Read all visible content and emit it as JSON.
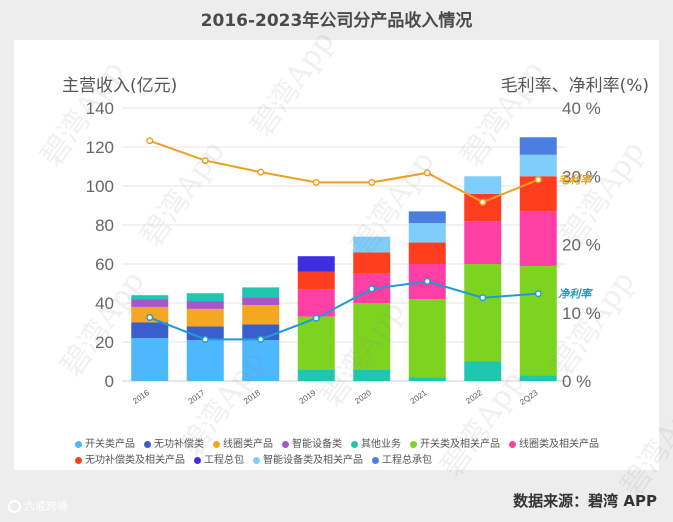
{
  "title": "2016-2023年公司分产品收入情况",
  "source": "数据来源：碧湾 APP",
  "footer_logo": "六戒跨境",
  "watermark": "碧湾App",
  "chart_data": {
    "type": "bar",
    "stacked": true,
    "title": "2016-2023年公司分产品收入情况",
    "ylabel": "主营收入(亿元)",
    "y2label": "毛利率、净利率(%)",
    "ylim": [
      0,
      140
    ],
    "y2lim": [
      0,
      40
    ],
    "yticks": [
      0,
      20,
      40,
      60,
      80,
      100,
      120,
      140
    ],
    "y2ticks": [
      "0 %",
      "10 %",
      "20 %",
      "30 %",
      "40 %"
    ],
    "categories": [
      "2016",
      "2017",
      "2018",
      "2019",
      "2020",
      "2021",
      "2022",
      "2Q23"
    ],
    "series": [
      {
        "name": "开关类产品",
        "color": "#4db8ff",
        "values": [
          22,
          21,
          21,
          0,
          0,
          0,
          0,
          0
        ]
      },
      {
        "name": "无功补偿类",
        "color": "#3a5fcd",
        "values": [
          8,
          7,
          8,
          0,
          0,
          0,
          0,
          0
        ]
      },
      {
        "name": "线圈类产品",
        "color": "#f5a623",
        "values": [
          8,
          9,
          10,
          0,
          0,
          0,
          0,
          0
        ]
      },
      {
        "name": "智能设备类",
        "color": "#a855c8",
        "values": [
          4,
          4,
          4,
          0,
          0,
          0,
          0,
          0
        ]
      },
      {
        "name": "其他业务",
        "color": "#1fc7b0",
        "values": [
          2,
          4,
          5,
          6,
          6,
          2,
          10,
          3
        ]
      },
      {
        "name": "开关类及相关产品",
        "color": "#7ed321",
        "values": [
          0,
          0,
          0,
          27,
          34,
          40,
          50,
          56
        ]
      },
      {
        "name": "线圈类及相关产品",
        "color": "#ff3fa4",
        "values": [
          0,
          0,
          0,
          14,
          15,
          18,
          22,
          28
        ]
      },
      {
        "name": "无功补偿类及相关产品",
        "color": "#ff3d1f",
        "values": [
          0,
          0,
          0,
          9,
          11,
          11,
          14,
          18
        ]
      },
      {
        "name": "工程总包",
        "color": "#3d2ee0",
        "values": [
          0,
          0,
          0,
          8,
          0,
          0,
          0,
          0
        ]
      },
      {
        "name": "智能设备类及相关产品",
        "color": "#7fcdfa",
        "values": [
          0,
          0,
          0,
          0,
          8,
          10,
          9,
          11
        ]
      },
      {
        "name": "工程总承包",
        "color": "#4a7fe0",
        "values": [
          0,
          0,
          0,
          0,
          0,
          6,
          0,
          9
        ]
      }
    ],
    "lines": [
      {
        "name": "毛利率",
        "color": "#f0a020",
        "values": [
          35.2,
          32.3,
          30.6,
          29.1,
          29.1,
          30.5,
          26.2,
          29.5
        ],
        "label_color": "#f0a020"
      },
      {
        "name": "净利率",
        "color": "#1e9bd7",
        "values": [
          9.3,
          6.1,
          6.1,
          9.2,
          13.5,
          14.6,
          12.2,
          12.8
        ],
        "label_color": "#1e9bd7"
      }
    ]
  }
}
